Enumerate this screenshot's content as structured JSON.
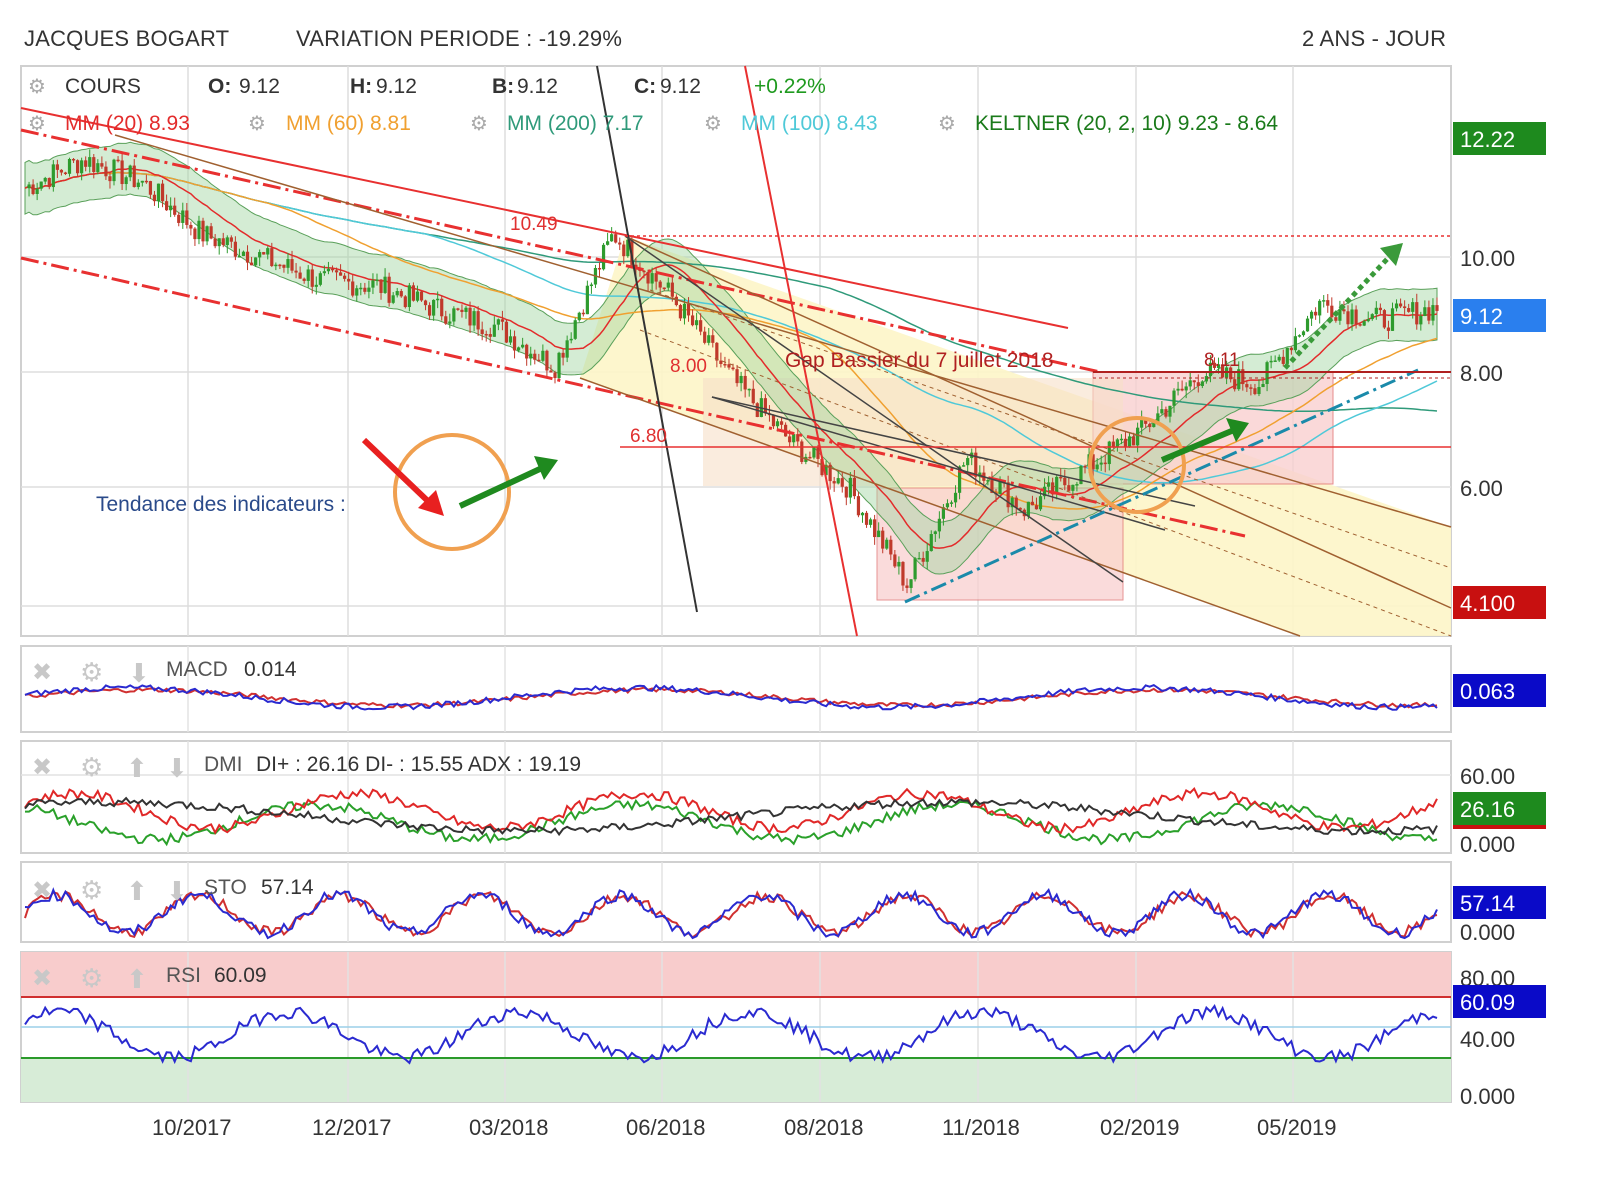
{
  "header": {
    "instrument": "JACQUES BOGART",
    "variation": "VARIATION PERIODE : -19.29%",
    "period": "2 ANS - JOUR"
  },
  "legend": {
    "cours_label": "COURS",
    "o_key": "O:",
    "o_val": "9.12",
    "h_key": "H:",
    "h_val": "9.12",
    "b_key": "B:",
    "b_val": "9.12",
    "c_key": "C:",
    "c_val": "9.12",
    "change": "+0.22%",
    "mm20": "MM (20) 8.93",
    "mm60": "MM (60) 8.81",
    "mm200": "MM (200) 7.17",
    "mm100": "MM (100) 8.43",
    "keltner": "KELTNER (20, 2, 10) 9.23 - 8.64"
  },
  "colors": {
    "up": "#2e9b2e",
    "down": "#c0392b",
    "mm20": "#e32b2b",
    "mm60": "#f0a030",
    "mm200": "#2f9a7a",
    "mm100": "#4fc9d8",
    "keltner": "#1a7a1a",
    "macd": "#2a2ad0",
    "signal": "#d03030",
    "rsi": "#2a2ad0"
  },
  "annotations": {
    "price_1049": "10.49",
    "price_800": "8.00",
    "price_680": "6.80",
    "price_811": "8.11",
    "gap": "Gap Bassier du 7 juillet 2018",
    "indicators": "Tendance des indicateurs :"
  },
  "price_axis": {
    "ticks": [
      "10.00",
      "8.00",
      "6.00"
    ],
    "badge_top": "12.22",
    "badge_last": "9.12",
    "badge_bottom": "4.100"
  },
  "x_axis": {
    "ticks": [
      "10/2017",
      "12/2017",
      "03/2018",
      "06/2018",
      "08/2018",
      "11/2018",
      "02/2019",
      "05/2019"
    ]
  },
  "macd": {
    "label": "MACD",
    "value": "0.014",
    "badge": "0.063"
  },
  "dmi": {
    "label": "DMI",
    "value": "DI+ : 26.16 DI- : 15.55 ADX : 19.19",
    "tick_top": "60.00",
    "tick_bottom": "0.000",
    "badge": "26.16",
    "badge_hidden": "19.19"
  },
  "sto": {
    "label": "STO",
    "value": "57.14",
    "badge": "57.14",
    "tick_bottom": "0.000"
  },
  "rsi": {
    "label": "RSI",
    "value": "60.09",
    "badge": "60.09",
    "tick_80": "80.00",
    "tick_40": "40.00",
    "tick_0": "0.000"
  },
  "chart_data": {
    "type": "candlestick",
    "title": "JACQUES BOGART",
    "x_ticks": [
      "10/2017",
      "12/2017",
      "03/2018",
      "06/2018",
      "08/2018",
      "11/2018",
      "02/2019",
      "05/2019"
    ],
    "y_ticks": [
      10.0,
      8.0,
      6.0
    ],
    "ylim": [
      4.1,
      12.22
    ],
    "close_series": [
      [
        "2017-07",
        11.2
      ],
      [
        "2017-08",
        11.7
      ],
      [
        "2017-09",
        11.3
      ],
      [
        "2017-10",
        10.4
      ],
      [
        "2017-11",
        10.0
      ],
      [
        "2017-12",
        9.6
      ],
      [
        "2018-01",
        9.5
      ],
      [
        "2018-02",
        9.1
      ],
      [
        "2018-03",
        8.8
      ],
      [
        "2018-04",
        8.1
      ],
      [
        "2018-05",
        10.4
      ],
      [
        "2018-06",
        9.3
      ],
      [
        "2018-07",
        7.9
      ],
      [
        "2018-08",
        6.8
      ],
      [
        "2018-09",
        6.0
      ],
      [
        "2018-10",
        4.3
      ],
      [
        "2018-11",
        6.5
      ],
      [
        "2018-12",
        5.6
      ],
      [
        "2019-01",
        6.3
      ],
      [
        "2019-02",
        7.0
      ],
      [
        "2019-03",
        8.0
      ],
      [
        "2019-04",
        7.8
      ],
      [
        "2019-05",
        9.2
      ],
      [
        "2019-06",
        8.9
      ],
      [
        "2019-07",
        9.12
      ]
    ],
    "horizontal_levels": [
      10.49,
      8.11,
      6.8
    ],
    "macd": {
      "value": 0.014,
      "last": 0.063
    },
    "dmi": {
      "di_plus": 26.16,
      "di_minus": 15.55,
      "adx": 19.19,
      "ylim": [
        0,
        60
      ]
    },
    "sto": {
      "value": 57.14,
      "ylim": [
        0,
        100
      ]
    },
    "rsi": {
      "value": 60.09,
      "overbought": 70,
      "oversold": 30,
      "ylim": [
        0,
        100
      ]
    }
  }
}
